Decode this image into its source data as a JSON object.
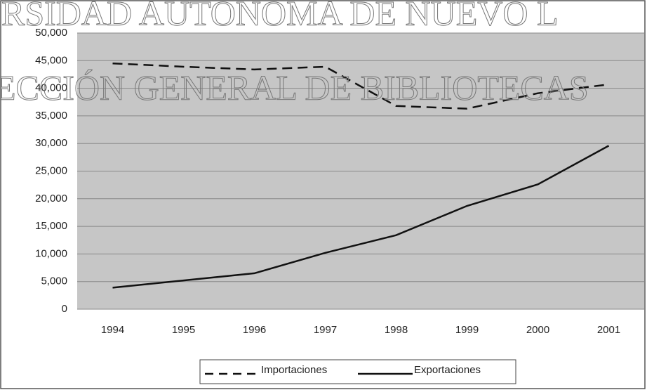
{
  "chart_data": {
    "type": "line",
    "annotations": [
      "RSIDAD AUTONOMA DE NUEVO L",
      "ECCIÓN GENERAL DE BIBLIOTECAS"
    ],
    "categories": [
      "1994",
      "1995",
      "1996",
      "1997",
      "1998",
      "1999",
      "2000",
      "2001"
    ],
    "series": [
      {
        "name": "Importaciones",
        "color": "#111111",
        "dash": true,
        "values": [
          44500,
          43900,
          43400,
          43900,
          36800,
          36300,
          39100,
          40700
        ]
      },
      {
        "name": "Exportaciones",
        "color": "#111111",
        "dash": false,
        "values": [
          3900,
          5200,
          6500,
          10200,
          13400,
          18700,
          22600,
          29600
        ]
      }
    ],
    "ylim": [
      0,
      50000
    ],
    "yticks": [
      0,
      {
        "value": 5000,
        "label": "5,000"
      },
      {
        "value": 10000,
        "label": "10,000"
      },
      {
        "value": 15000,
        "label": "15,000"
      },
      {
        "value": 20000,
        "label": "20,000"
      },
      {
        "value": 25000,
        "label": "25,000"
      },
      {
        "value": 30000,
        "label": "30,000"
      },
      {
        "value": 35000,
        "label": "35,000"
      },
      {
        "value": 40000,
        "label": "40,000"
      },
      {
        "value": 45000,
        "label": "45,000"
      },
      {
        "value": 50000,
        "label": "50,000"
      }
    ],
    "grid": true,
    "legend": "bottom"
  }
}
